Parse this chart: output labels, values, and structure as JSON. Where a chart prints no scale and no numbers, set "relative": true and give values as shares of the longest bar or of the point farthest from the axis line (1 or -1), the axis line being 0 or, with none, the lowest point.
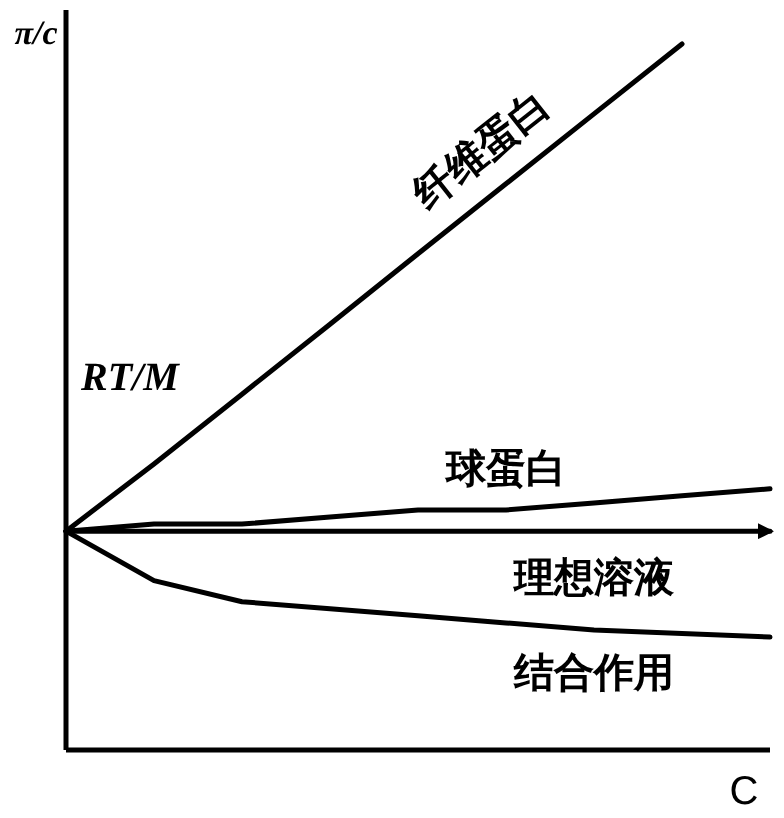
{
  "chart_data": {
    "type": "line",
    "relative": true,
    "ylabel": "π/c",
    "xlabel": "C",
    "marker": "none",
    "line_style": "solid",
    "categories": [
      null,
      null,
      null,
      null,
      null,
      null,
      null,
      null,
      null
    ],
    "annotations": [
      "RT/M"
    ],
    "series": [
      {
        "name": "纤维蛋白",
        "color": "#000000",
        "values": [
          0.31,
          0.405,
          0.504,
          0.603,
          0.703,
          0.802,
          0.901,
          1.0,
          null
        ]
      },
      {
        "name": "球蛋白",
        "color": "#000000",
        "values": [
          0.31,
          0.32,
          0.32,
          0.33,
          0.34,
          0.34,
          0.35,
          0.36,
          0.37
        ]
      },
      {
        "name": "理想溶液",
        "color": "#000000",
        "values": [
          0.31,
          0.31,
          0.31,
          0.31,
          0.31,
          0.31,
          0.31,
          0.31,
          0.31
        ]
      },
      {
        "name": "结合作用",
        "color": "#000000",
        "values": [
          0.31,
          0.24,
          0.21,
          0.2,
          0.19,
          0.18,
          0.17,
          0.165,
          0.16
        ]
      }
    ]
  }
}
